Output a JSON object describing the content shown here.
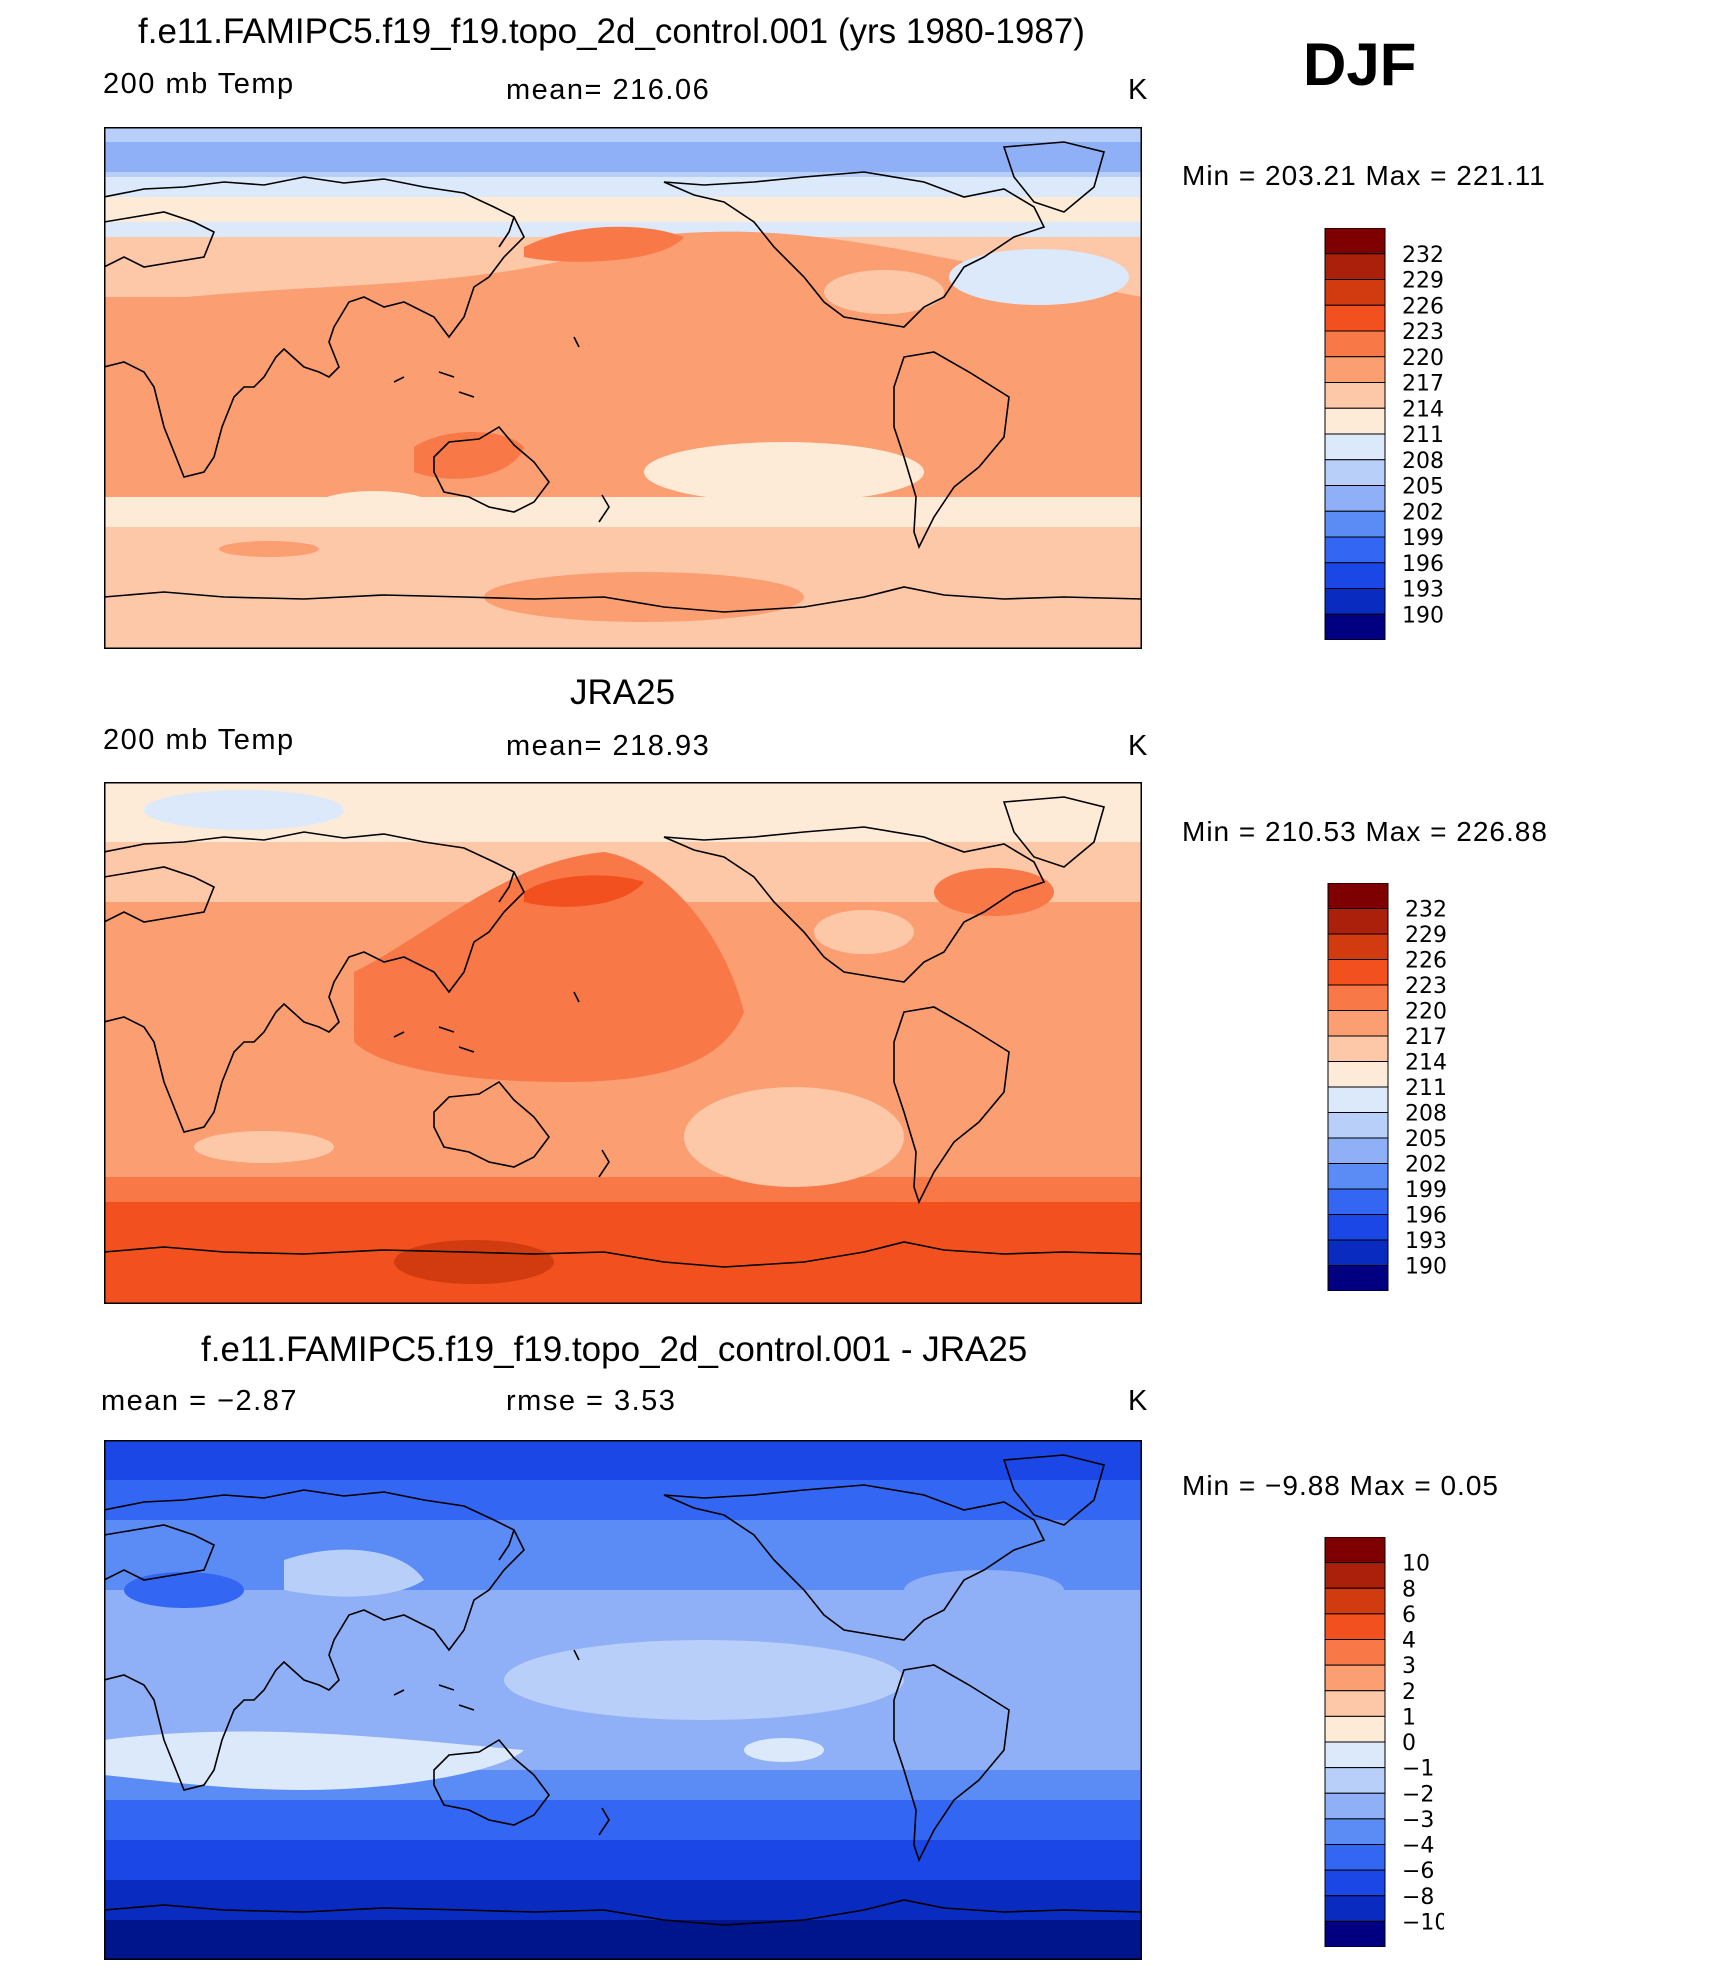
{
  "season": "DJF",
  "panels": [
    {
      "title": "f.e11.FAMIPC5.f19_f19.topo_2d_control.001 (yrs 1980-1987)",
      "left_label": "200 mb Temp",
      "center_label": "mean=  216.06",
      "units": "K",
      "minmax": "Min  =  203.21  Max  =  221.11",
      "palette": "temp"
    },
    {
      "title": "JRA25",
      "left_label": "200 mb Temp",
      "center_label": "mean=  218.93",
      "units": "K",
      "minmax": "Min  =  210.53  Max  =  226.88",
      "palette": "temp"
    },
    {
      "title": "f.e11.FAMIPC5.f19_f19.topo_2d_control.001 - JRA25",
      "left_label": "mean  =    −2.87",
      "center_label": "rmse  =     3.53",
      "units": "K",
      "minmax": "Min  =    −9.88  Max  =     0.05",
      "palette": "diff"
    }
  ],
  "chart_data": [
    {
      "type": "heatmap",
      "title": "f.e11.FAMIPC5.f19_f19.topo_2d_control.001 (yrs 1980-1987)",
      "variable": "200 mb Temp",
      "units": "K",
      "mean": 216.06,
      "min": 203.21,
      "max": 221.11,
      "colorbar_levels": [
        190,
        193,
        196,
        199,
        202,
        205,
        208,
        211,
        214,
        217,
        220,
        223,
        226,
        229,
        232
      ]
    },
    {
      "type": "heatmap",
      "title": "JRA25",
      "variable": "200 mb Temp",
      "units": "K",
      "mean": 218.93,
      "min": 210.53,
      "max": 226.88,
      "colorbar_levels": [
        190,
        193,
        196,
        199,
        202,
        205,
        208,
        211,
        214,
        217,
        220,
        223,
        226,
        229,
        232
      ]
    },
    {
      "type": "heatmap",
      "title": "f.e11.FAMIPC5.f19_f19.topo_2d_control.001 - JRA25",
      "units": "K",
      "mean": -2.87,
      "rmse": 3.53,
      "min": -9.88,
      "max": 0.05,
      "colorbar_levels": [
        -10,
        -8,
        -6,
        -4,
        -3,
        -2,
        -1,
        0,
        1,
        2,
        3,
        4,
        6,
        8,
        10
      ]
    }
  ],
  "colorbar_labels": {
    "temp": [
      "232",
      "229",
      "226",
      "223",
      "220",
      "217",
      "214",
      "211",
      "208",
      "205",
      "202",
      "199",
      "196",
      "193",
      "190"
    ],
    "diff": [
      "10",
      "8",
      "6",
      "4",
      "3",
      "2",
      "1",
      "0",
      "−1",
      "−2",
      "−3",
      "−4",
      "−6",
      "−8",
      "−10"
    ]
  },
  "colors": {
    "scale": [
      "#000080",
      "#00158c",
      "#0a2bbf",
      "#1a47e6",
      "#3366f2",
      "#5b8cf5",
      "#8fb0f7",
      "#b8cffa",
      "#dbe9fb",
      "#fdebd8",
      "#fcc8a8",
      "#fb9e72",
      "#f97848",
      "#f2501e",
      "#d23b10",
      "#aa200a",
      "#7f0000"
    ]
  }
}
